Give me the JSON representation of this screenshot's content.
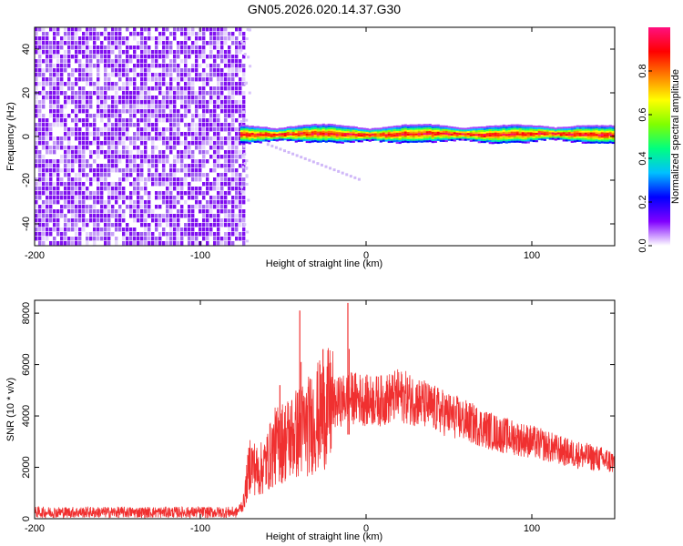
{
  "title": "GN05.2026.020.14.37.G30",
  "chart_data": [
    {
      "type": "heatmap",
      "xlabel": "Height of straight line (km)",
      "ylabel": "Frequency (Hz)",
      "xlim": [
        -200,
        150
      ],
      "ylim": [
        -50,
        50
      ],
      "x_ticks": [
        "-200",
        "-100",
        "0",
        "100"
      ],
      "y_ticks": [
        "-40",
        "-20",
        "0",
        "20",
        "40"
      ],
      "noise_region_x": [
        -200,
        -74
      ],
      "signal_region_x": [
        -76,
        150
      ],
      "signal_frequency_hz": 1,
      "signal_halfwidth_hz": 2.5,
      "faint_trace": {
        "x_start": -60,
        "x_end": -5,
        "freq_start": -3,
        "freq_end": -19
      },
      "colorbar": {
        "label": "Normalized spectral amplitude",
        "range": [
          0,
          1
        ],
        "ticks": [
          "0.0",
          "0.2",
          "0.4",
          "0.6",
          "0.8"
        ],
        "colors": [
          "#ffffff",
          "#8000ff",
          "#0000ff",
          "#00c0ff",
          "#00ff80",
          "#80ff00",
          "#ffff00",
          "#ff8000",
          "#ff0000",
          "#ff1080"
        ]
      }
    },
    {
      "type": "line",
      "xlabel": "Height of straight line (km)",
      "ylabel": "SNR (10 * v/v)",
      "xlim": [
        -200,
        150
      ],
      "ylim": [
        0,
        8500
      ],
      "x_ticks": [
        "-200",
        "-100",
        "0",
        "100"
      ],
      "y_ticks": [
        "0",
        "2000",
        "4000",
        "6000",
        "8000"
      ],
      "color": "#f03030",
      "envelope": {
        "x": [
          -200,
          -78,
          -74,
          -70,
          -65,
          -60,
          -55,
          -50,
          -45,
          -40,
          -35,
          -30,
          -25,
          -20,
          -15,
          -10,
          -5,
          0,
          10,
          20,
          30,
          40,
          60,
          80,
          100,
          120,
          150
        ],
        "y": [
          250,
          250,
          600,
          2200,
          1800,
          2200,
          2800,
          3000,
          3200,
          3400,
          3600,
          3900,
          4200,
          4400,
          4600,
          4700,
          4700,
          4600,
          4600,
          4800,
          4600,
          4300,
          3800,
          3300,
          3000,
          2600,
          2200
        ]
      },
      "spikes": [
        {
          "x": -40,
          "y": 8100
        },
        {
          "x": -11,
          "y": 8400
        },
        {
          "x": -52,
          "y": 5200
        },
        {
          "x": -26,
          "y": 6600
        }
      ]
    }
  ]
}
